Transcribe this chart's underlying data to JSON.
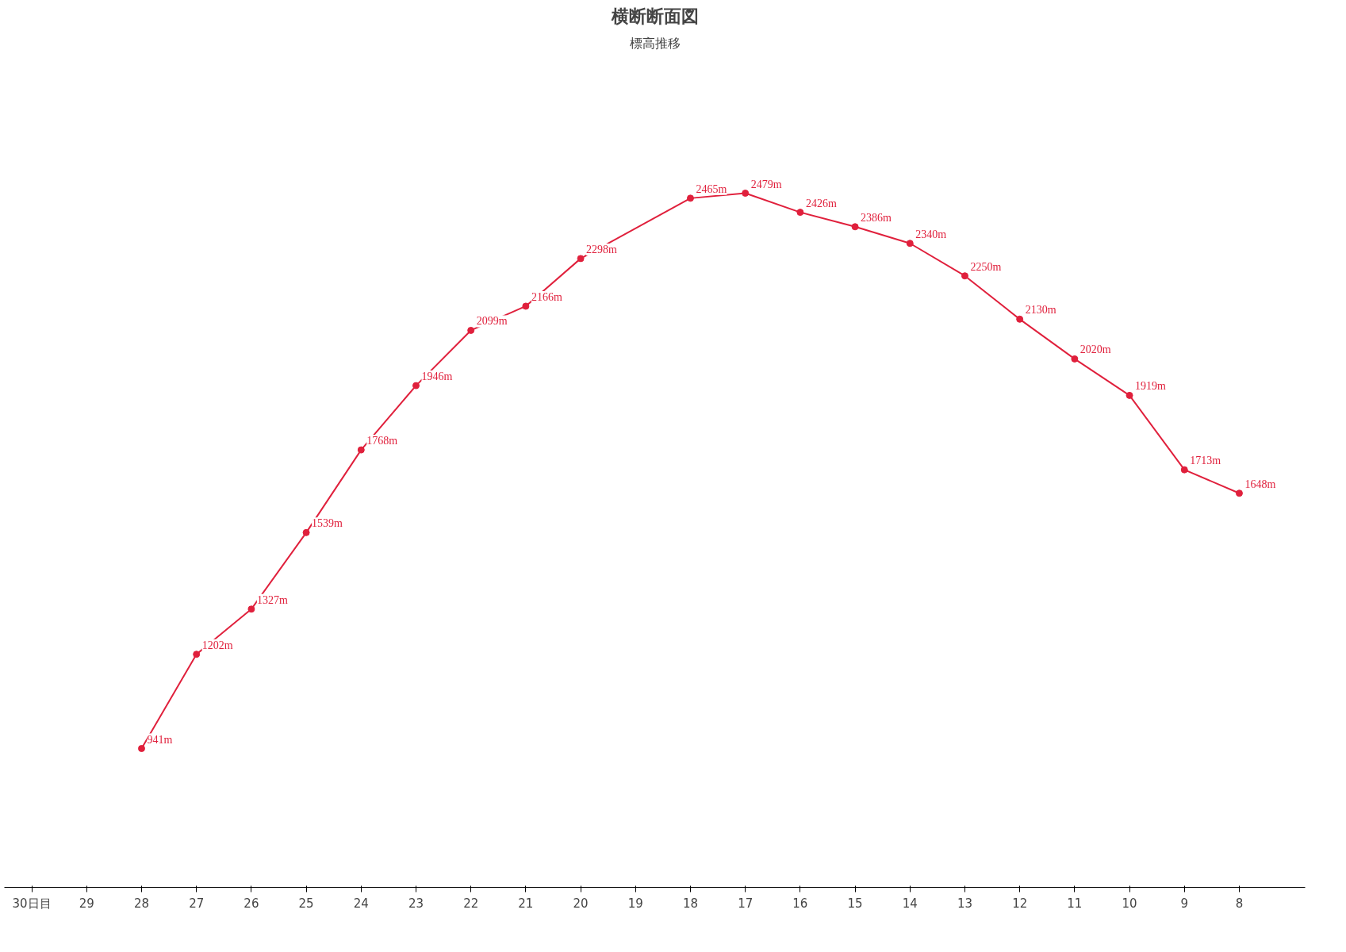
{
  "chart_data": {
    "type": "line",
    "title": "横断断面図",
    "subtitle": "標高推移",
    "categories": [
      "30日目",
      "29",
      "28",
      "27",
      "26",
      "25",
      "24",
      "23",
      "22",
      "21",
      "20",
      "19",
      "18",
      "17",
      "16",
      "15",
      "14",
      "13",
      "12",
      "11",
      "10",
      "9",
      "8"
    ],
    "series": [
      {
        "color": "#e0203c",
        "values": [
          null,
          null,
          941,
          1202,
          1327,
          1539,
          1768,
          1946,
          2099,
          2166,
          2298,
          null,
          2465,
          2479,
          2426,
          2386,
          2340,
          2250,
          2130,
          2020,
          1919,
          1713,
          1648
        ],
        "value_labels": [
          null,
          null,
          "941m",
          "1202m",
          "1327m",
          "1539m",
          "1768m",
          "1946m",
          "2099m",
          "2166m",
          "2298m",
          null,
          "2465m",
          "2479m",
          "2426m",
          "2386m",
          "2340m",
          "2250m",
          "2130m",
          "2020m",
          "1919m",
          "1713m",
          "1648m"
        ]
      }
    ],
    "marker": "circle",
    "line_style": "solid",
    "tick_labels": "x",
    "grid": false
  }
}
